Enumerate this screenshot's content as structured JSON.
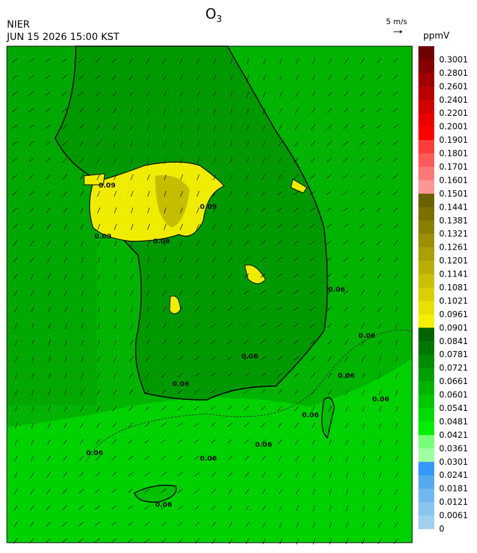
{
  "header": {
    "title": "O",
    "title_sub": "3",
    "agency": "NIER",
    "datetime": "JUN 15 2026 15:00 KST",
    "wind_scale": "5 m/s",
    "unit": "ppmV"
  },
  "colorbar": [
    {
      "label": "0.3001",
      "color": "#6e0000"
    },
    {
      "label": "0.2801",
      "color": "#870000"
    },
    {
      "label": "0.2601",
      "color": "#a00000"
    },
    {
      "label": "0.2401",
      "color": "#b90000"
    },
    {
      "label": "0.2201",
      "color": "#d20000"
    },
    {
      "label": "0.2001",
      "color": "#eb0000"
    },
    {
      "label": "0.1901",
      "color": "#ff0000"
    },
    {
      "label": "0.1801",
      "color": "#ff3c3c"
    },
    {
      "label": "0.1701",
      "color": "#ff5a5a"
    },
    {
      "label": "0.1601",
      "color": "#ff7878"
    },
    {
      "label": "0.1501",
      "color": "#ff9696"
    },
    {
      "label": "0.1441",
      "color": "#6b6100"
    },
    {
      "label": "0.1381",
      "color": "#7a7000"
    },
    {
      "label": "0.1321",
      "color": "#8a8000"
    },
    {
      "label": "0.1261",
      "color": "#9a9000"
    },
    {
      "label": "0.1201",
      "color": "#aaa000"
    },
    {
      "label": "0.1141",
      "color": "#baaf00"
    },
    {
      "label": "0.1081",
      "color": "#cabf00"
    },
    {
      "label": "0.1021",
      "color": "#d9cf00"
    },
    {
      "label": "0.0961",
      "color": "#e8e000"
    },
    {
      "label": "0.0901",
      "color": "#f5f000"
    },
    {
      "label": "0.0841",
      "color": "#006400"
    },
    {
      "label": "0.0781",
      "color": "#007800"
    },
    {
      "label": "0.0721",
      "color": "#008c00"
    },
    {
      "label": "0.0661",
      "color": "#00a000"
    },
    {
      "label": "0.0601",
      "color": "#00b400"
    },
    {
      "label": "0.0541",
      "color": "#00c800"
    },
    {
      "label": "0.0481",
      "color": "#00dc00"
    },
    {
      "label": "0.0421",
      "color": "#00f000"
    },
    {
      "label": "0.0361",
      "color": "#78ff78"
    },
    {
      "label": "0.0301",
      "color": "#a0ffa0"
    },
    {
      "label": "0.0241",
      "color": "#3399ff"
    },
    {
      "label": "0.0181",
      "color": "#55aaee"
    },
    {
      "label": "0.0121",
      "color": "#70b8ee"
    },
    {
      "label": "0.0061",
      "color": "#88c4ee"
    },
    {
      "label": "0",
      "color": "#a0d0ee"
    }
  ],
  "contour_labels": [
    "0.09",
    "0.09",
    "0.09",
    "0.09",
    "0.06",
    "0.06",
    "0.06",
    "0.06",
    "0.06",
    "0.06",
    "0.06",
    "0.06",
    "0.06",
    "0.06",
    "0.06"
  ]
}
